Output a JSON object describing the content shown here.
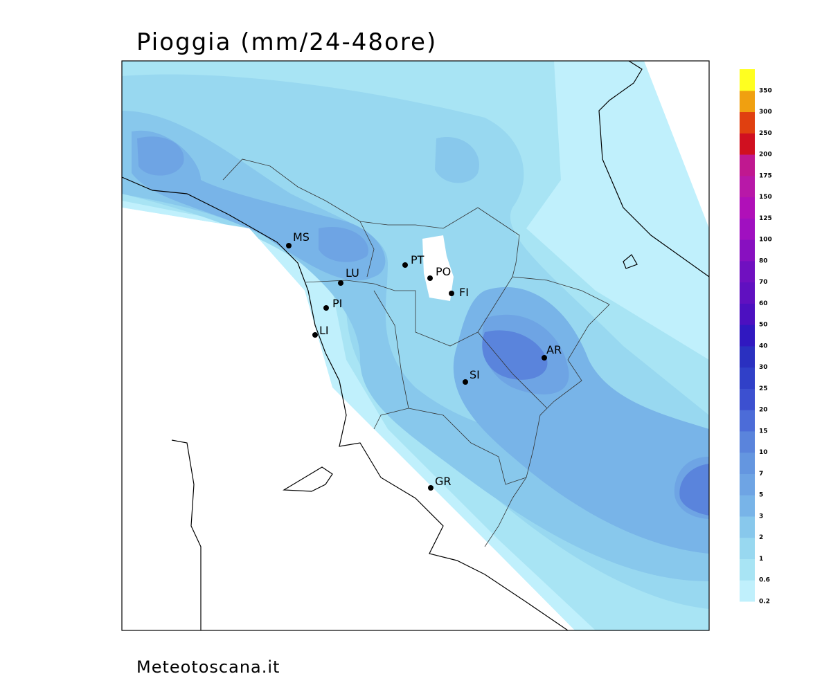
{
  "title": "Pioggia (mm/24-48ore)",
  "footer": "Meteotoscana.it",
  "cities": [
    "MS",
    "LU",
    "PT",
    "PO",
    "FI",
    "PI",
    "LI",
    "AR",
    "SI",
    "GR"
  ],
  "legend": {
    "levels": [
      0.2,
      0.6,
      1,
      2,
      3,
      5,
      7,
      10,
      15,
      20,
      25,
      30,
      40,
      50,
      60,
      70,
      80,
      100,
      125,
      150,
      175,
      200,
      250,
      300,
      350
    ],
    "colors": [
      "#c0f0fc",
      "#a8e4f4",
      "#98d8f0",
      "#88c8ec",
      "#78b4e8",
      "#6ea4e4",
      "#6496e0",
      "#5a84dc",
      "#4c6cd8",
      "#3c50d0",
      "#3040c8",
      "#2a30c0",
      "#3018c0",
      "#4c10c0",
      "#6010c0",
      "#7010c0",
      "#8810c0",
      "#a010c0",
      "#b010b8",
      "#b818a8",
      "#c01890",
      "#d01020",
      "#e04010",
      "#f0a010",
      "#ffff20"
    ]
  }
}
